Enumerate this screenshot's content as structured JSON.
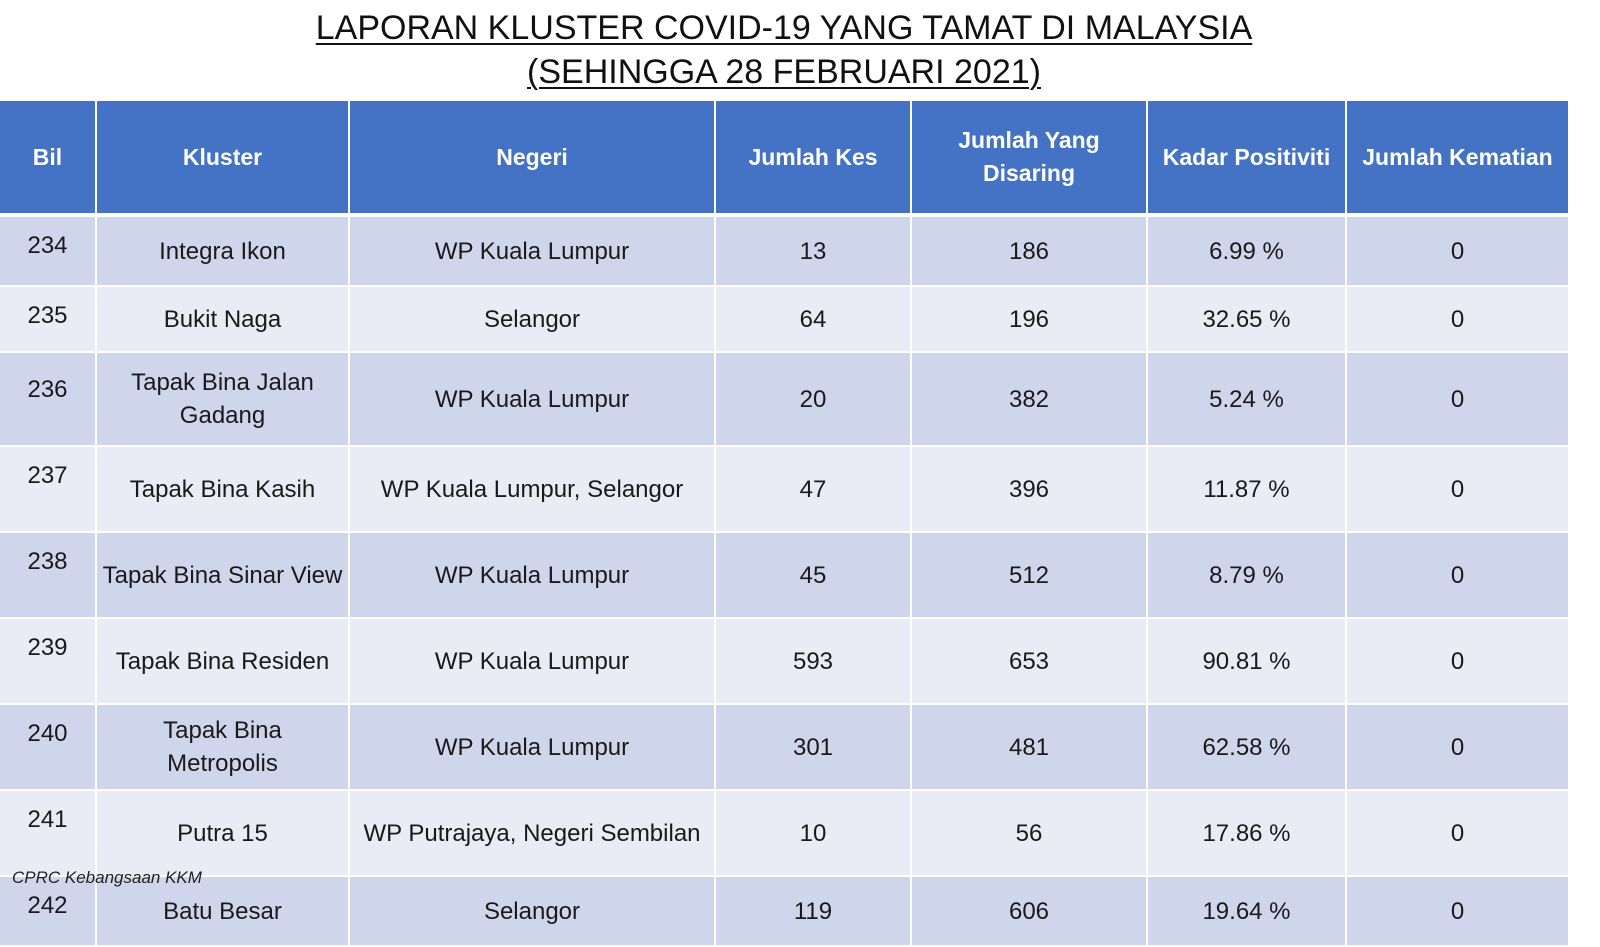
{
  "title": {
    "line1": "LAPORAN KLUSTER COVID-19 YANG TAMAT DI MALAYSIA",
    "line2": "(SEHINGGA  28 FEBRUARI 2021)"
  },
  "table": {
    "headers": [
      "Bil",
      "Kluster",
      "Negeri",
      "Jumlah Kes",
      "Jumlah Yang Disaring",
      "Kadar Positiviti",
      "Jumlah Kematian"
    ],
    "rows": [
      [
        "234",
        "Integra Ikon",
        "WP Kuala Lumpur",
        "13",
        "186",
        "6.99 %",
        "0"
      ],
      [
        "235",
        "Bukit Naga",
        "Selangor",
        "64",
        "196",
        "32.65 %",
        "0"
      ],
      [
        "236",
        "Tapak Bina Jalan Gadang",
        "WP Kuala Lumpur",
        "20",
        "382",
        "5.24 %",
        "0"
      ],
      [
        "237",
        "Tapak Bina Kasih",
        "WP Kuala Lumpur, Selangor",
        "47",
        "396",
        "11.87 %",
        "0"
      ],
      [
        "238",
        "Tapak Bina Sinar View",
        "WP Kuala Lumpur",
        "45",
        "512",
        "8.79 %",
        "0"
      ],
      [
        "239",
        "Tapak Bina Residen",
        "WP Kuala Lumpur",
        "593",
        "653",
        "90.81 %",
        "0"
      ],
      [
        "240",
        "Tapak Bina Metropolis",
        "WP Kuala Lumpur",
        "301",
        "481",
        "62.58 %",
        "0"
      ],
      [
        "241",
        "Putra 15",
        "WP Putrajaya, Negeri Sembilan",
        "10",
        "56",
        "17.86 %",
        "0"
      ],
      [
        "242",
        "Batu Besar",
        "Selangor",
        "119",
        "606",
        "19.64 %",
        "0"
      ]
    ]
  },
  "footer": "CPRC Kebangsaan KKM"
}
